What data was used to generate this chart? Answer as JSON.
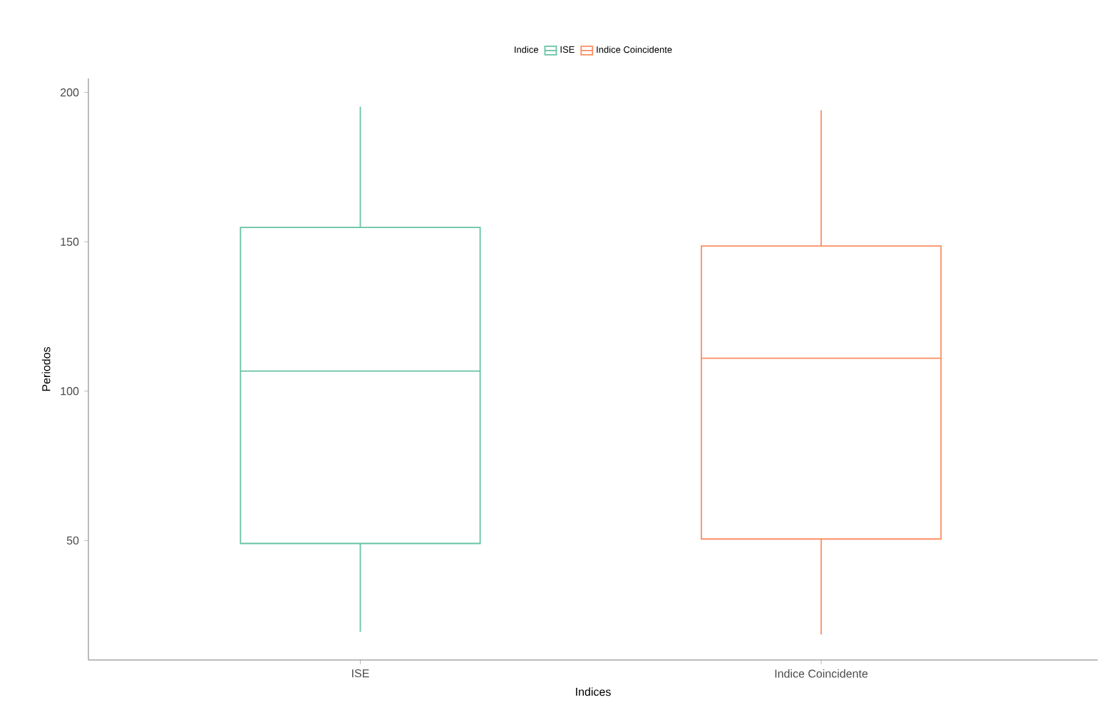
{
  "chart_data": {
    "type": "box",
    "xlabel": "Indices",
    "ylabel": "Periodos",
    "legend_title": "Indice",
    "legend": "top",
    "categories": [
      "ISE",
      "Indice Coincidente"
    ],
    "series": [
      {
        "name": "ISE",
        "color": "#66c2a5",
        "boxes": [
          {
            "low": 19.4,
            "q1": 49,
            "median": 106.7,
            "q3": 154.8,
            "high": 195.2
          },
          null
        ]
      },
      {
        "name": "Indice Coincidente",
        "color": "#fc8d62",
        "boxes": [
          null,
          {
            "low": 18.5,
            "q1": 50.5,
            "median": 111,
            "q3": 148.6,
            "high": 194
          }
        ]
      }
    ],
    "ylim": [
      10,
      204.7
    ],
    "yticks": [
      50,
      100,
      150,
      200
    ]
  }
}
